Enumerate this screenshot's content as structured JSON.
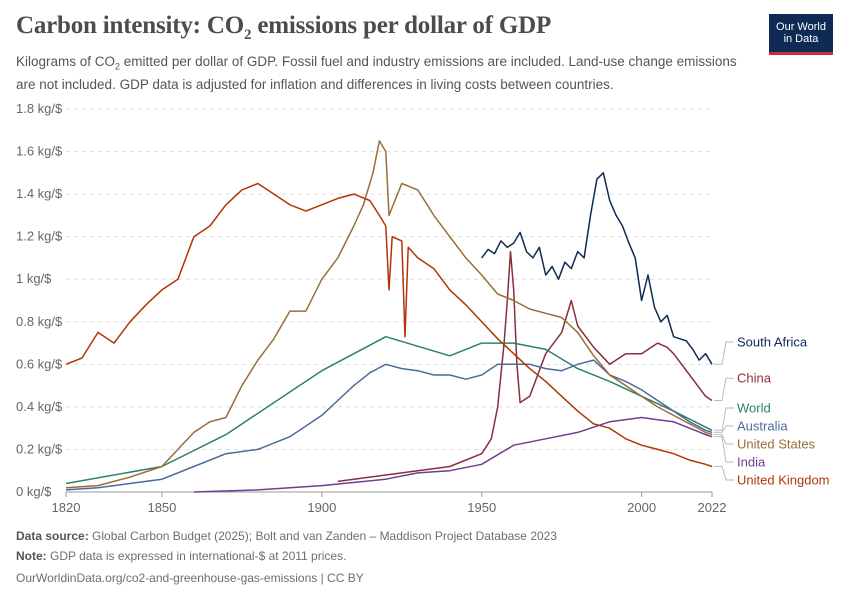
{
  "header": {
    "title_main": "Carbon intensity: CO",
    "title_sub": "2",
    "title_rest": " emissions per dollar of GDP",
    "subtitle_a": "Kilograms of CO",
    "subtitle_sub": "2",
    "subtitle_b": " emitted per dollar of GDP. Fossil fuel and industry emissions are included. Land-use change emissions are not included. GDP data is adjusted for inflation and differences in living costs between countries."
  },
  "logo": {
    "line1": "Our World",
    "line2": "in Data"
  },
  "footer": {
    "source_label": "Data source:",
    "source_text": " Global Carbon Budget (2025); Bolt and van Zanden – Maddison Project Database 2023",
    "note_label": "Note:",
    "note_text": " GDP data is expressed in international-$ at 2011 prices.",
    "credit": "OurWorldinData.org/co2-and-greenhouse-gas-emissions | CC BY"
  },
  "chart_data": {
    "type": "line",
    "xlim": [
      1820,
      2022
    ],
    "ylim": [
      0,
      1.8
    ],
    "x_ticks": [
      {
        "value": 1820,
        "label": "1820"
      },
      {
        "value": 1850,
        "label": "1850"
      },
      {
        "value": 1900,
        "label": "1900"
      },
      {
        "value": 1950,
        "label": "1950"
      },
      {
        "value": 2000,
        "label": "2000"
      },
      {
        "value": 2022,
        "label": "2022"
      }
    ],
    "y_ticks": [
      {
        "value": 0,
        "label": "0 kg/$"
      },
      {
        "value": 0.2,
        "label": "0.2 kg/$"
      },
      {
        "value": 0.4,
        "label": "0.4 kg/$"
      },
      {
        "value": 0.6,
        "label": "0.6 kg/$"
      },
      {
        "value": 0.8,
        "label": "0.8 kg/$"
      },
      {
        "value": 1,
        "label": "1 kg/$"
      },
      {
        "value": 1.2,
        "label": "1.2 kg/$"
      },
      {
        "value": 1.4,
        "label": "1.4 kg/$"
      },
      {
        "value": 1.6,
        "label": "1.6 kg/$"
      },
      {
        "value": 1.8,
        "label": "1.8 kg/$"
      }
    ],
    "grid": true,
    "legend": "right-end labels",
    "series": [
      {
        "name": "South Africa",
        "color": "#0f2a54",
        "x": [
          1950,
          1952,
          1954,
          1956,
          1958,
          1960,
          1962,
          1964,
          1966,
          1968,
          1970,
          1972,
          1974,
          1976,
          1978,
          1980,
          1982,
          1984,
          1986,
          1988,
          1990,
          1992,
          1994,
          1996,
          1998,
          2000,
          2002,
          2004,
          2006,
          2008,
          2010,
          2012,
          2014,
          2016,
          2018,
          2020,
          2022
        ],
        "y": [
          1.1,
          1.14,
          1.12,
          1.18,
          1.15,
          1.17,
          1.22,
          1.13,
          1.1,
          1.15,
          1.02,
          1.06,
          1.0,
          1.08,
          1.05,
          1.13,
          1.1,
          1.3,
          1.47,
          1.5,
          1.37,
          1.3,
          1.25,
          1.17,
          1.1,
          0.9,
          1.02,
          0.87,
          0.8,
          0.83,
          0.73,
          0.72,
          0.71,
          0.67,
          0.62,
          0.65,
          0.6
        ]
      },
      {
        "name": "China",
        "color": "#883039",
        "x": [
          1905,
          1910,
          1920,
          1930,
          1940,
          1950,
          1953,
          1955,
          1957,
          1958,
          1959,
          1960,
          1961,
          1962,
          1965,
          1970,
          1975,
          1978,
          1980,
          1985,
          1990,
          1995,
          2000,
          2005,
          2008,
          2010,
          2015,
          2020,
          2022
        ],
        "y": [
          0.05,
          0.06,
          0.08,
          0.1,
          0.12,
          0.18,
          0.25,
          0.4,
          0.7,
          0.9,
          1.13,
          0.95,
          0.6,
          0.42,
          0.45,
          0.65,
          0.75,
          0.9,
          0.78,
          0.68,
          0.6,
          0.65,
          0.65,
          0.7,
          0.68,
          0.65,
          0.55,
          0.45,
          0.43
        ]
      },
      {
        "name": "World",
        "color": "#2c8465",
        "x": [
          1820,
          1850,
          1870,
          1900,
          1920,
          1940,
          1950,
          1960,
          1970,
          1980,
          1990,
          2000,
          2010,
          2022
        ],
        "y": [
          0.04,
          0.12,
          0.27,
          0.57,
          0.73,
          0.64,
          0.7,
          0.7,
          0.67,
          0.58,
          0.52,
          0.45,
          0.38,
          0.29
        ]
      },
      {
        "name": "Australia",
        "color": "#4c6a9c",
        "x": [
          1820,
          1830,
          1840,
          1850,
          1860,
          1870,
          1880,
          1890,
          1900,
          1905,
          1910,
          1915,
          1920,
          1925,
          1930,
          1935,
          1940,
          1945,
          1950,
          1955,
          1960,
          1965,
          1970,
          1975,
          1980,
          1985,
          1990,
          1995,
          2000,
          2005,
          2010,
          2015,
          2020,
          2022
        ],
        "y": [
          0.01,
          0.02,
          0.04,
          0.06,
          0.12,
          0.18,
          0.2,
          0.26,
          0.36,
          0.43,
          0.5,
          0.56,
          0.6,
          0.58,
          0.57,
          0.55,
          0.55,
          0.53,
          0.55,
          0.6,
          0.6,
          0.6,
          0.58,
          0.57,
          0.6,
          0.62,
          0.55,
          0.52,
          0.48,
          0.43,
          0.38,
          0.33,
          0.29,
          0.28
        ]
      },
      {
        "name": "India",
        "color": "#6d3e91",
        "x": [
          1860,
          1880,
          1900,
          1920,
          1930,
          1940,
          1950,
          1960,
          1970,
          1980,
          1990,
          2000,
          2005,
          2010,
          2015,
          2020,
          2022
        ],
        "y": [
          0.0,
          0.01,
          0.03,
          0.06,
          0.09,
          0.1,
          0.13,
          0.22,
          0.25,
          0.28,
          0.33,
          0.35,
          0.34,
          0.33,
          0.3,
          0.27,
          0.26
        ]
      },
      {
        "name": "United States",
        "color": "#996d39",
        "x": [
          1820,
          1830,
          1840,
          1850,
          1855,
          1860,
          1865,
          1870,
          1875,
          1880,
          1885,
          1890,
          1895,
          1900,
          1905,
          1910,
          1913,
          1916,
          1918,
          1920,
          1921,
          1925,
          1930,
          1935,
          1940,
          1945,
          1950,
          1955,
          1960,
          1965,
          1970,
          1975,
          1980,
          1985,
          1990,
          1995,
          2000,
          2005,
          2010,
          2015,
          2020,
          2022
        ],
        "y": [
          0.02,
          0.03,
          0.07,
          0.12,
          0.2,
          0.28,
          0.33,
          0.35,
          0.5,
          0.62,
          0.72,
          0.85,
          0.85,
          1.0,
          1.1,
          1.25,
          1.35,
          1.5,
          1.65,
          1.6,
          1.3,
          1.45,
          1.42,
          1.3,
          1.2,
          1.1,
          1.02,
          0.93,
          0.9,
          0.86,
          0.84,
          0.82,
          0.75,
          0.64,
          0.55,
          0.5,
          0.45,
          0.4,
          0.36,
          0.32,
          0.28,
          0.27
        ]
      },
      {
        "name": "United Kingdom",
        "color": "#b13507",
        "x": [
          1820,
          1825,
          1830,
          1835,
          1840,
          1845,
          1850,
          1855,
          1860,
          1865,
          1870,
          1875,
          1880,
          1885,
          1890,
          1895,
          1900,
          1905,
          1910,
          1915,
          1918,
          1920,
          1921,
          1922,
          1925,
          1926,
          1927,
          1930,
          1935,
          1940,
          1945,
          1950,
          1955,
          1960,
          1965,
          1970,
          1975,
          1980,
          1985,
          1990,
          1995,
          2000,
          2005,
          2010,
          2015,
          2020,
          2022
        ],
        "y": [
          0.6,
          0.63,
          0.75,
          0.7,
          0.8,
          0.88,
          0.95,
          1.0,
          1.2,
          1.25,
          1.35,
          1.42,
          1.45,
          1.4,
          1.35,
          1.32,
          1.35,
          1.38,
          1.4,
          1.37,
          1.3,
          1.25,
          0.95,
          1.2,
          1.18,
          0.73,
          1.15,
          1.1,
          1.05,
          0.95,
          0.88,
          0.8,
          0.72,
          0.65,
          0.58,
          0.52,
          0.45,
          0.38,
          0.32,
          0.3,
          0.25,
          0.22,
          0.2,
          0.18,
          0.15,
          0.13,
          0.12
        ]
      }
    ]
  }
}
